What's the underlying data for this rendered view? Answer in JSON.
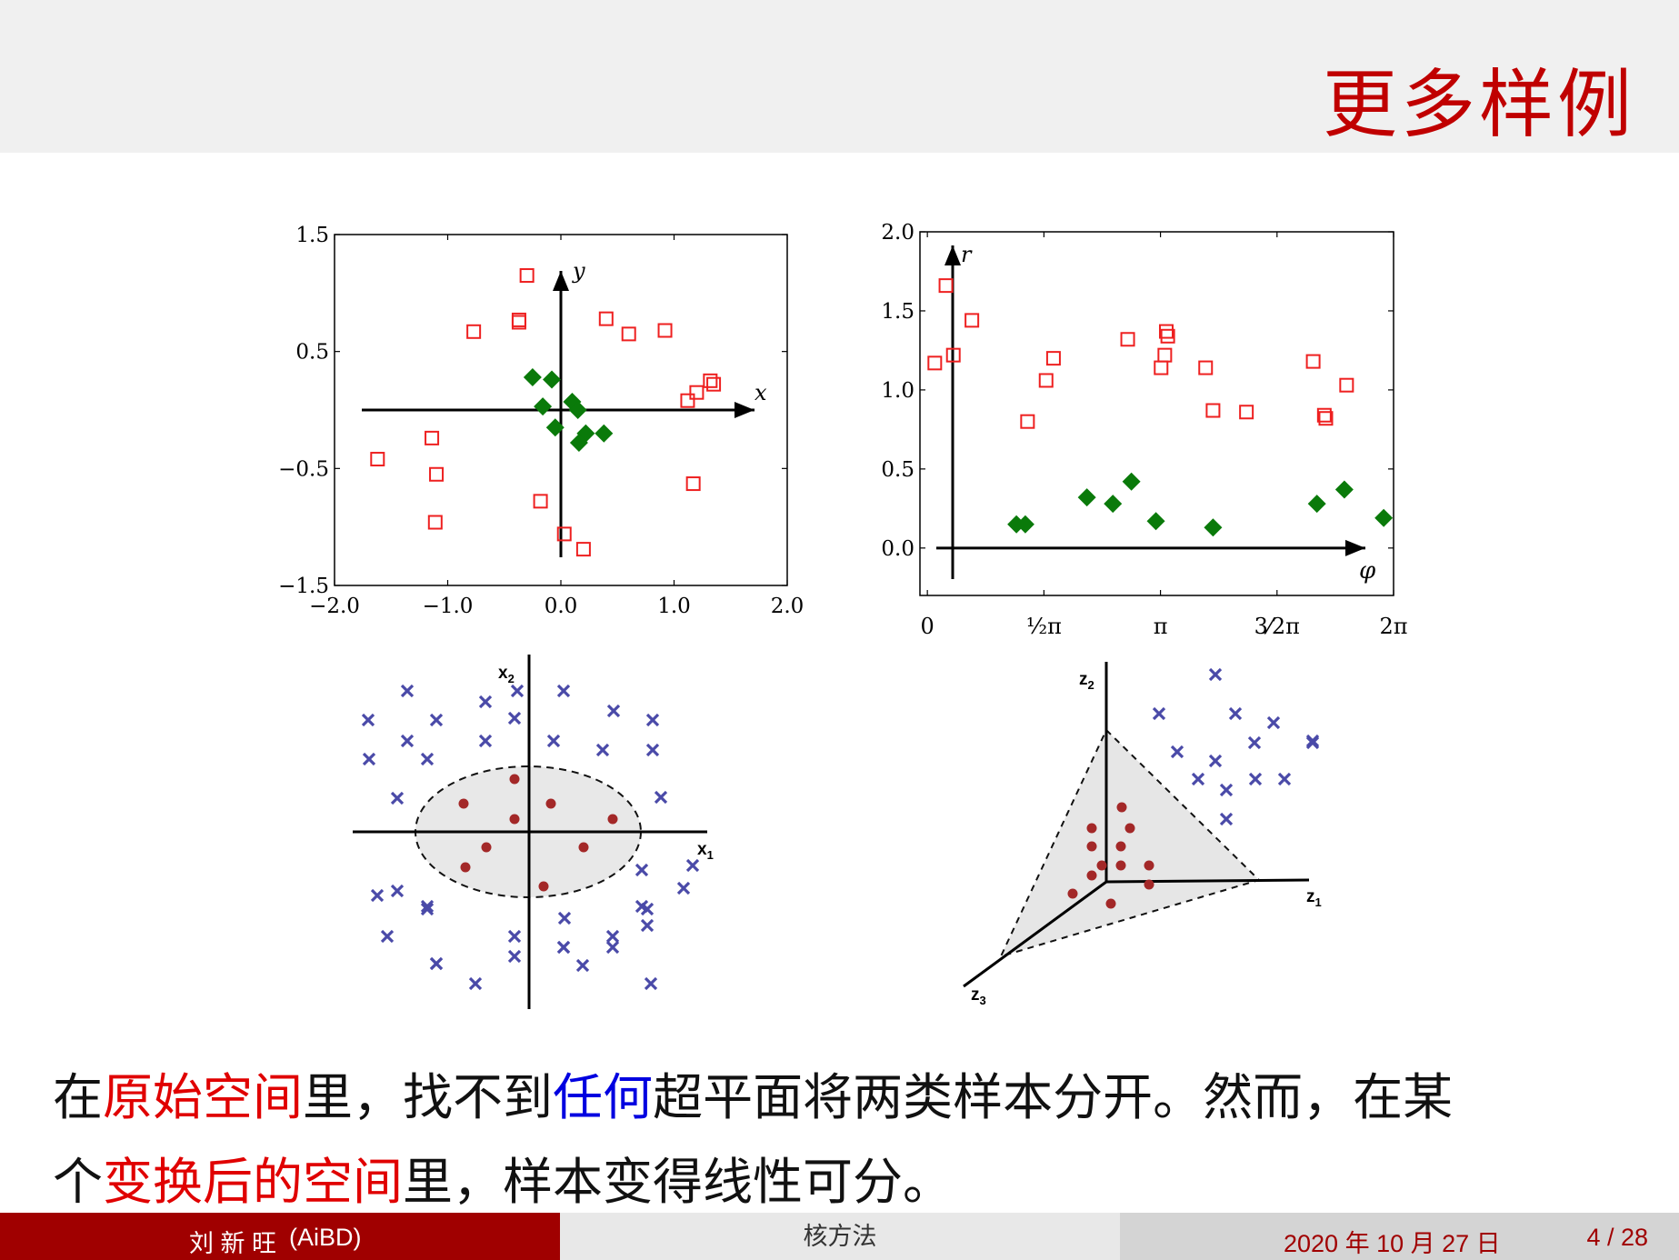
{
  "title": "更多样例",
  "chart_data": [
    {
      "type": "scatter",
      "ylim": [
        -1.5,
        1.5
      ],
      "xlim": [
        -2.0,
        2.0
      ],
      "xticks": [
        "−2.0",
        "−1.0",
        "0.0",
        "1.0",
        "2.0"
      ],
      "yticks": [
        "1.5",
        "0.5",
        "−0.5",
        "−1.5"
      ],
      "axis_x_label": "x",
      "axis_y_label": "y",
      "series": [
        {
          "marker": "square",
          "color": "#ee2020",
          "points": [
            [
              -0.3,
              1.15
            ],
            [
              -0.37,
              0.77
            ],
            [
              -0.37,
              0.75
            ],
            [
              -0.77,
              0.67
            ],
            [
              0.4,
              0.78
            ],
            [
              0.6,
              0.65
            ],
            [
              0.92,
              0.68
            ],
            [
              1.32,
              0.25
            ],
            [
              1.35,
              0.22
            ],
            [
              1.2,
              0.15
            ],
            [
              1.12,
              0.08
            ],
            [
              -1.14,
              -0.24
            ],
            [
              -1.62,
              -0.42
            ],
            [
              -1.1,
              -0.55
            ],
            [
              -0.18,
              -0.78
            ],
            [
              1.17,
              -0.63
            ],
            [
              -1.11,
              -0.96
            ],
            [
              0.03,
              -1.06
            ],
            [
              0.2,
              -1.19
            ]
          ]
        },
        {
          "marker": "diamond",
          "color": "#0a7a0a",
          "points": [
            [
              -0.25,
              0.28
            ],
            [
              -0.08,
              0.26
            ],
            [
              -0.16,
              0.03
            ],
            [
              0.1,
              0.07
            ],
            [
              0.15,
              0.0
            ],
            [
              -0.05,
              -0.15
            ],
            [
              0.22,
              -0.2
            ],
            [
              0.38,
              -0.2
            ],
            [
              0.16,
              -0.28
            ]
          ]
        }
      ]
    },
    {
      "type": "scatter",
      "ylim": [
        -0.3,
        2.0
      ],
      "xlim": [
        -0.1,
        6.283
      ],
      "xticks": [
        "0",
        "½π",
        "π",
        "3⁄2π",
        "2π"
      ],
      "yticks": [
        "2.0",
        "1.5",
        "1.0",
        "0.5",
        "0.0"
      ],
      "axis_x_label": "φ",
      "axis_y_label": "r",
      "series": [
        {
          "marker": "square",
          "color": "#ee2020",
          "points": [
            [
              0.1,
              1.17
            ],
            [
              0.25,
              1.66
            ],
            [
              0.35,
              1.22
            ],
            [
              0.6,
              1.44
            ],
            [
              1.35,
              0.8
            ],
            [
              1.6,
              1.06
            ],
            [
              1.7,
              1.2
            ],
            [
              2.7,
              1.32
            ],
            [
              3.15,
              1.14
            ],
            [
              3.2,
              1.22
            ],
            [
              3.22,
              1.37
            ],
            [
              3.24,
              1.34
            ],
            [
              3.75,
              1.14
            ],
            [
              3.85,
              0.87
            ],
            [
              4.3,
              0.86
            ],
            [
              5.2,
              1.18
            ],
            [
              5.35,
              0.84
            ],
            [
              5.37,
              0.82
            ],
            [
              5.65,
              1.03
            ]
          ]
        },
        {
          "marker": "diamond",
          "color": "#0a7a0a",
          "points": [
            [
              1.2,
              0.15
            ],
            [
              1.32,
              0.15
            ],
            [
              2.15,
              0.32
            ],
            [
              2.5,
              0.28
            ],
            [
              2.75,
              0.42
            ],
            [
              3.08,
              0.17
            ],
            [
              3.85,
              0.13
            ],
            [
              5.25,
              0.28
            ],
            [
              5.62,
              0.37
            ],
            [
              6.15,
              0.19
            ]
          ]
        }
      ]
    }
  ],
  "diagram_left": {
    "x_axis": "x",
    "x_sub": "1",
    "y_axis": "x",
    "y_sub": "2"
  },
  "diagram_right": {
    "a1": "z",
    "a1_sub": "1",
    "a2": "z",
    "a2_sub": "2",
    "a3": "z",
    "a3_sub": "3"
  },
  "body": {
    "l1": [
      "在",
      "原始空间",
      "里，找不到",
      "任何",
      "超平面将两类样本分开。然而，在某"
    ],
    "l2": [
      "个",
      "变换后的空间",
      "里，样本变得线性可分。"
    ]
  },
  "footer": {
    "author": "刘 新 旺",
    "org": "(AiBD)",
    "topic": "核方法",
    "date": "2020 年 10 月 27 日",
    "page": "4 / 28"
  }
}
